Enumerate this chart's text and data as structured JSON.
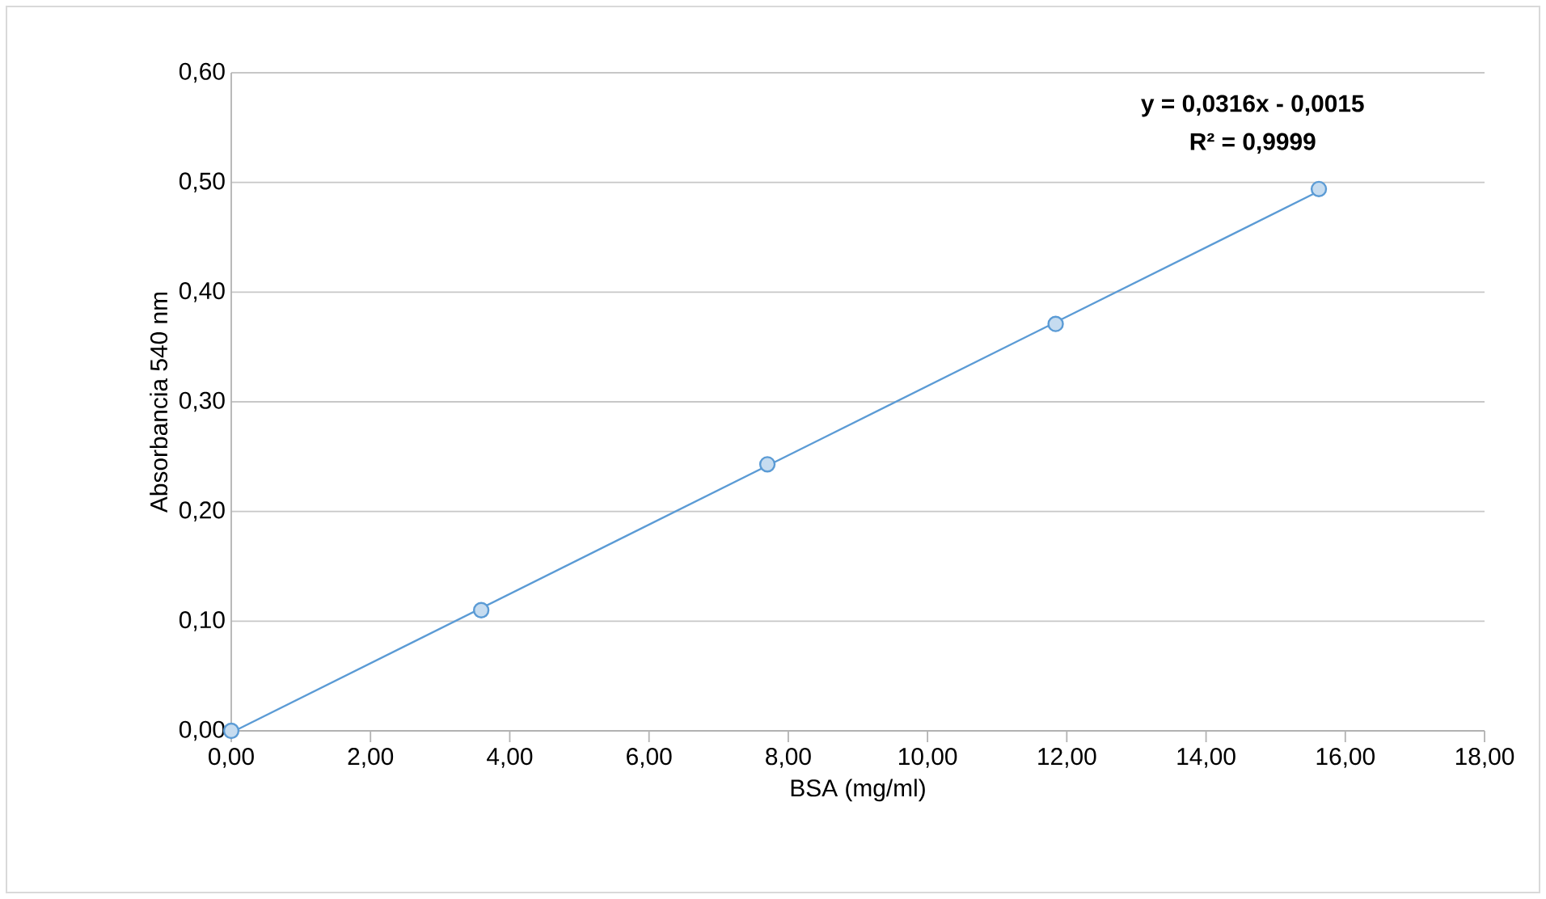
{
  "chart_data": {
    "type": "scatter",
    "xlabel": "BSA (mg/ml)",
    "ylabel": "Absorbancia 540 nm",
    "series": [
      {
        "marker": "circle",
        "color": "#5b9bd5",
        "x": [
          0,
          3.59,
          7.7,
          11.84,
          15.62
        ],
        "values": [
          0,
          0.11,
          0.243,
          0.371,
          0.494
        ]
      },
      {
        "type": "line",
        "marker": "none",
        "line_style": "solid",
        "color": "#5b9bd5",
        "x": [
          0.05,
          15.62
        ],
        "values": [
          0,
          0.492
        ]
      }
    ],
    "xlim": [
      0,
      18
    ],
    "ylim": [
      0,
      0.6
    ],
    "xticks": [
      {
        "value": 0,
        "label": "0,00"
      },
      {
        "value": 2,
        "label": "2,00"
      },
      {
        "value": 4,
        "label": "4,00"
      },
      {
        "value": 6,
        "label": "6,00"
      },
      {
        "value": 8,
        "label": "8,00"
      },
      {
        "value": 10,
        "label": "10,00"
      },
      {
        "value": 12,
        "label": "12,00"
      },
      {
        "value": 14,
        "label": "14,00"
      },
      {
        "value": 16,
        "label": "16,00"
      },
      {
        "value": 18,
        "label": "18,00"
      }
    ],
    "yticks": [
      {
        "value": 0,
        "label": "0,00"
      },
      {
        "value": 0.1,
        "label": "0,10"
      },
      {
        "value": 0.2,
        "label": "0,20"
      },
      {
        "value": 0.3,
        "label": "0,30"
      },
      {
        "value": 0.4,
        "label": "0,40"
      },
      {
        "value": 0.5,
        "label": "0,50"
      },
      {
        "value": 0.6,
        "label": "0,60"
      }
    ],
    "grid": "y",
    "annotations": [
      "y = 0,0316x - 0,0015",
      "R² = 0,9999"
    ]
  }
}
